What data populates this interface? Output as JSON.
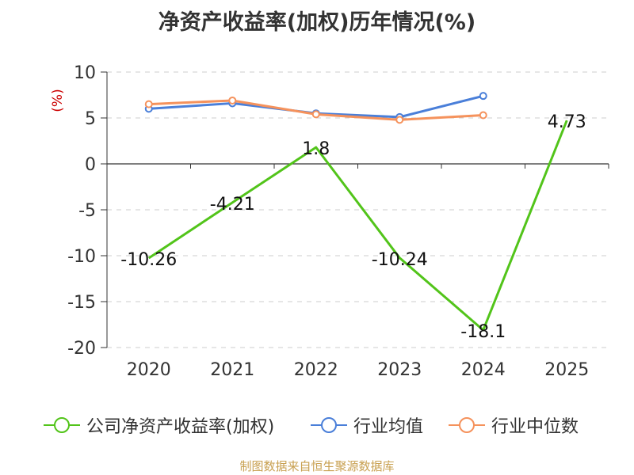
{
  "title": "净资产收益率(加权)历年情况(%)",
  "source": "制图数据来自恒生聚源数据库",
  "colors": {
    "company": "#52c41a",
    "industry_avg": "#4a7fd9",
    "industry_median": "#f5925c",
    "unit_label": "#cc0000",
    "source": "#c8a050"
  },
  "chart_data": {
    "type": "line",
    "title": "净资产收益率(加权)历年情况(%)",
    "xlabel": "",
    "ylabel": "(%)",
    "categories": [
      "2020",
      "2021",
      "2022",
      "2023",
      "2024",
      "2025"
    ],
    "ylim": [
      -20,
      10
    ],
    "yticks": [
      10,
      5,
      0,
      -5,
      -10,
      -15,
      -20
    ],
    "grid": "horizontal-dashed",
    "legend": "bottom",
    "series": [
      {
        "name": "公司净资产收益率(加权)",
        "values": [
          -10.26,
          -4.21,
          1.8,
          -10.24,
          -18.1,
          4.73
        ],
        "labels": [
          "-10.26",
          "-4.21",
          "1.8",
          "-10.24",
          "-18.1",
          "4.73"
        ],
        "color": "#52c41a"
      },
      {
        "name": "行业均值",
        "values": [
          6.0,
          6.6,
          5.5,
          5.1,
          7.4,
          null
        ],
        "color": "#4a7fd9"
      },
      {
        "name": "行业中位数",
        "values": [
          6.5,
          6.9,
          5.4,
          4.8,
          5.3,
          null
        ],
        "color": "#f5925c"
      }
    ]
  }
}
